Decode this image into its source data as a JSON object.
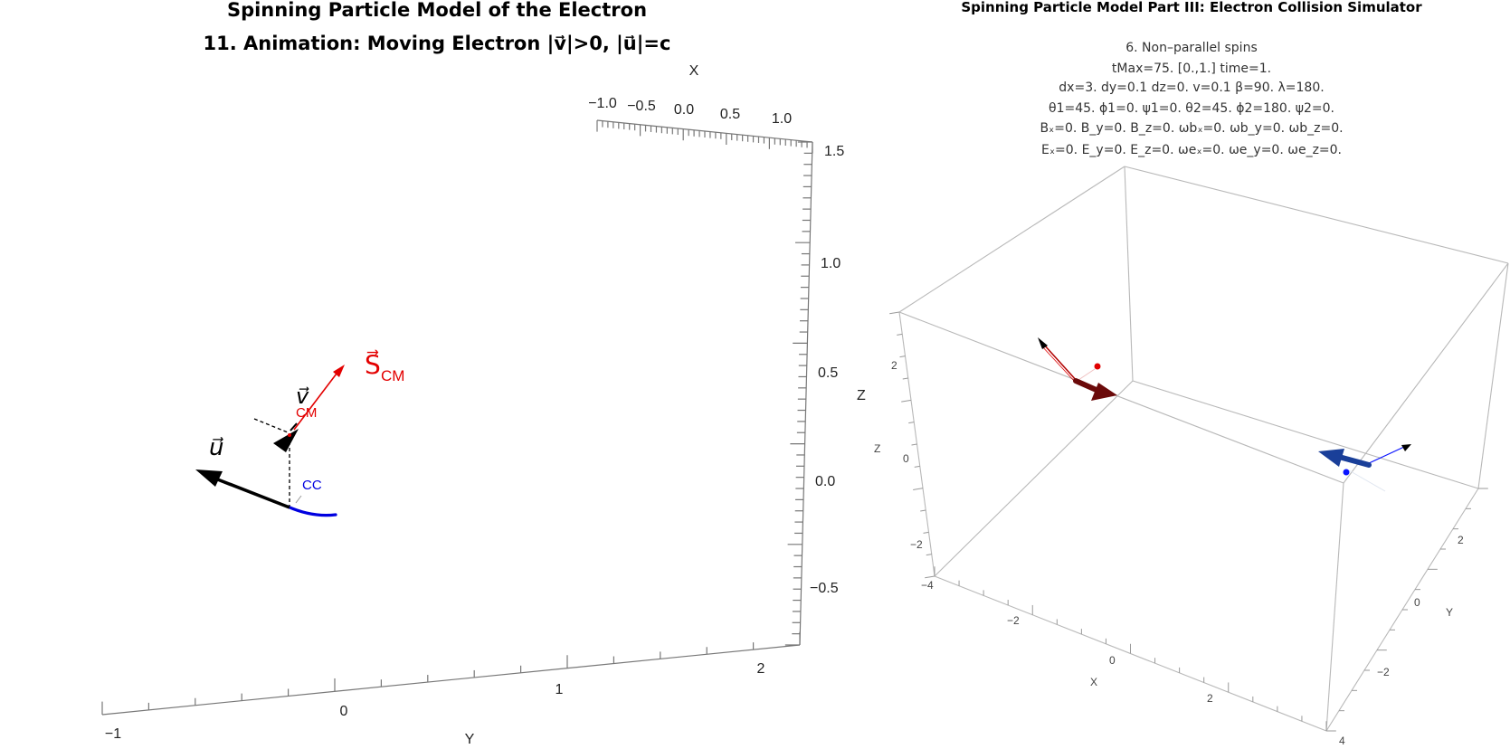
{
  "left_panel": {
    "title1": "Spinning Particle Model of the Electron",
    "title2": "11. Animation: Moving Electron |v⃗|>0, |u⃗|=c",
    "x_axis_label": "X",
    "y_axis_label": "Y",
    "x_ticks": [
      "−1.0",
      "−0.5",
      "0.0",
      "0.5",
      "1.0"
    ],
    "z_ticks": [
      "1.5",
      "1.0",
      "0.5",
      "0.0",
      "−0.5"
    ],
    "y_ticks": [
      "−1",
      "0",
      "1",
      "2"
    ],
    "labels": {
      "u": "u⃗",
      "v": "v⃗",
      "s_cm_main": "S⃗",
      "s_cm_sub": "CM",
      "cm": "CM",
      "cc": "CC"
    },
    "colors": {
      "red": "#e30000",
      "blue": "#0000e0",
      "black": "#000000"
    }
  },
  "right_panel": {
    "title": "Spinning Particle Model Part III: Electron Collision Simulator",
    "info_lines": [
      "6. Non–parallel spins",
      "tMax=75.        [0.,1.]        time=1.",
      "dx=3. dy=0.1 dz=0.          v=0.1 β=90. λ=180.",
      "θ1=45. ϕ1=0. ψ1=0.          θ2=45. ϕ2=180. ψ2=0.",
      "Bₓ=0. B_y=0. B_z=0.          ωbₓ=0. ωb_y=0. ωb_z=0.",
      "Eₓ=0. E_y=0. E_z=0.          ωeₓ=0. ωe_y=0. ωe_z=0."
    ],
    "z_label_outer": "Z",
    "z_label_inner": "Z",
    "x_axis_label": "X",
    "y_axis_label": "Y",
    "z_ticks": [
      "2",
      "0",
      "−2"
    ],
    "x_ticks": [
      "−4",
      "−2",
      "0",
      "2",
      "4"
    ],
    "y_ticks": [
      "2",
      "0",
      "−2"
    ],
    "colors": {
      "darkred": "#6b0a0a",
      "red": "#e00000",
      "blue": "#1a3f99",
      "bright_blue": "#0a14ff"
    }
  }
}
